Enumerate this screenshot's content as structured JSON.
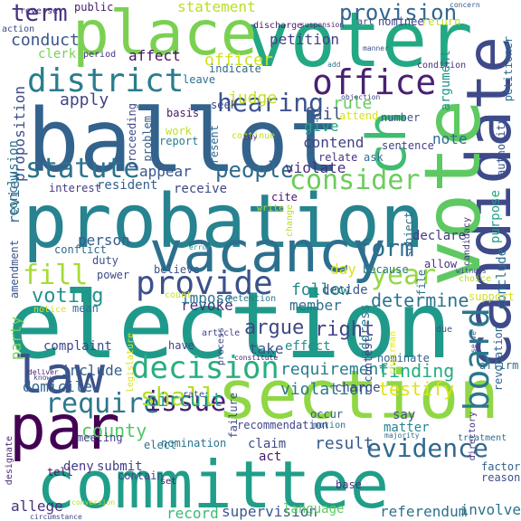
{
  "palette": {
    "dark_purple": "#45176a",
    "indigo": "#3e4a89",
    "blue": "#365c8d",
    "steel": "#2a768e",
    "teal": "#20918c",
    "green": "#35b779",
    "lime": "#86d549",
    "yellow_green": "#b5de2b"
  },
  "words": [
    {
      "text": "election",
      "color": "#1f9a8a"
    },
    {
      "text": "ballot",
      "color": "#33638d"
    },
    {
      "text": "probation",
      "color": "#26838f"
    },
    {
      "text": "committee",
      "color": "#1f9e89"
    },
    {
      "text": "section",
      "color": "#8fd744"
    },
    {
      "text": "voter",
      "color": "#23a884"
    },
    {
      "text": "candidate",
      "color": "#3e4a89"
    },
    {
      "text": "vote",
      "color": "#5ec962"
    },
    {
      "text": "place",
      "color": "#7ad151"
    },
    {
      "text": "vacancy",
      "color": "#2d708e"
    },
    {
      "text": "law",
      "color": "#3b528b"
    },
    {
      "text": "par",
      "color": "#440154"
    },
    {
      "text": "ch",
      "color": "#3fbc73"
    },
    {
      "text": "district",
      "color": "#287d8e"
    },
    {
      "text": "office",
      "color": "#482173"
    },
    {
      "text": "provide",
      "color": "#3b518b"
    },
    {
      "text": "decision",
      "color": "#28ae80"
    },
    {
      "text": "statute",
      "color": "#2c728e"
    },
    {
      "text": "require",
      "color": "#2a788e"
    },
    {
      "text": "issue",
      "color": "#481f70"
    },
    {
      "text": "consider",
      "color": "#6ccd5a"
    },
    {
      "text": "board",
      "color": "#2a778e"
    },
    {
      "text": "hearing",
      "color": "#3a548c"
    },
    {
      "text": "people",
      "color": "#2f6b8e"
    },
    {
      "text": "evidence",
      "color": "#31688e"
    },
    {
      "text": "shall",
      "color": "#b5de2b"
    },
    {
      "text": "fill",
      "color": "#a5db36"
    },
    {
      "text": "year",
      "color": "#95d840"
    },
    {
      "text": "term",
      "color": "#46337e"
    },
    {
      "text": "provision",
      "color": "#32658e"
    },
    {
      "text": "form",
      "color": "#2e6e8e"
    },
    {
      "text": "voting",
      "color": "#1f948c"
    },
    {
      "text": "argue",
      "color": "#3f4788"
    },
    {
      "text": "right",
      "color": "#404588"
    },
    {
      "text": "determine",
      "color": "#2c738e"
    },
    {
      "text": "circuit",
      "color": "#21a685"
    },
    {
      "text": "requirement",
      "color": "#277f8e"
    },
    {
      "text": "county",
      "color": "#52c569"
    },
    {
      "text": "finding",
      "color": "#25ac82"
    },
    {
      "text": "testify",
      "color": "#dde318"
    },
    {
      "text": "violation",
      "color": "#2a788e"
    },
    {
      "text": "result",
      "color": "#365d8d"
    },
    {
      "text": "supervision",
      "color": "#38598c"
    },
    {
      "text": "referendum",
      "color": "#2d708e"
    },
    {
      "text": "involve",
      "color": "#2c728e"
    },
    {
      "text": "record",
      "color": "#3aba76"
    },
    {
      "text": "language",
      "color": "#5ec962"
    },
    {
      "text": "allege",
      "color": "#46307e"
    },
    {
      "text": "follow",
      "color": "#228b8d"
    },
    {
      "text": "member",
      "color": "#2e6f8e"
    },
    {
      "text": "officer",
      "color": "#d2e21b"
    },
    {
      "text": "judge",
      "color": "#c8e020"
    },
    {
      "text": "apply",
      "color": "#414487"
    },
    {
      "text": "conduct",
      "color": "#39568c"
    },
    {
      "text": "petition",
      "color": "#433e85"
    },
    {
      "text": "affect",
      "color": "#471164"
    },
    {
      "text": "rule",
      "color": "#65cb5e"
    },
    {
      "text": "fail",
      "color": "#3b528b"
    },
    {
      "text": "give",
      "color": "#1fa287"
    },
    {
      "text": "contend",
      "color": "#424186"
    },
    {
      "text": "note",
      "color": "#2f6c8e"
    },
    {
      "text": "person",
      "color": "#34608d"
    },
    {
      "text": "party",
      "color": "#7ad151"
    },
    {
      "text": "revoke",
      "color": "#472f7d"
    },
    {
      "text": "impose",
      "color": "#2b758e"
    },
    {
      "text": "complaint",
      "color": "#3f4889"
    },
    {
      "text": "include",
      "color": "#355f8d"
    },
    {
      "text": "domicile",
      "color": "#32658e"
    },
    {
      "text": "deny",
      "color": "#443983"
    },
    {
      "text": "submit",
      "color": "#424086"
    },
    {
      "text": "violate",
      "color": "#46327e"
    },
    {
      "text": "day",
      "color": "#d8e219"
    },
    {
      "text": "take",
      "color": "#3a538b"
    },
    {
      "text": "effect",
      "color": "#20928c"
    },
    {
      "text": "address",
      "color": "#2a788e"
    },
    {
      "text": "review",
      "color": "#2f6b8e"
    },
    {
      "text": "proposition",
      "color": "#3d4d8a"
    },
    {
      "text": "statement",
      "color": "#b8de29"
    },
    {
      "text": "clerk",
      "color": "#77d153"
    },
    {
      "text": "appear",
      "color": "#39568c"
    },
    {
      "text": "receive",
      "color": "#3f4788"
    },
    {
      "text": "resident",
      "color": "#355e8d"
    },
    {
      "text": "interest",
      "color": "#443a83"
    },
    {
      "text": "conclusion",
      "color": "#2c738e"
    },
    {
      "text": "duty",
      "color": "#3b528b"
    },
    {
      "text": "mean",
      "color": "#2d718e"
    },
    {
      "text": "have",
      "color": "#414487"
    },
    {
      "text": "believe",
      "color": "#3a548c"
    },
    {
      "text": "power",
      "color": "#3e4c8a"
    },
    {
      "text": "conflict",
      "color": "#31688e"
    },
    {
      "text": "amendment",
      "color": "#3b528b"
    },
    {
      "text": "public",
      "color": "#481b6d"
    },
    {
      "text": "nominee",
      "color": "#424186"
    },
    {
      "text": "return",
      "color": "#bddf26"
    },
    {
      "text": "argument",
      "color": "#1f968b"
    },
    {
      "text": "petitioner",
      "color": "#2e6d8e"
    },
    {
      "text": "authority",
      "color": "#3a548c"
    },
    {
      "text": "purpose",
      "color": "#1fa188"
    },
    {
      "text": "conclude",
      "color": "#2d718e"
    },
    {
      "text": "support",
      "color": "#d0e11c"
    },
    {
      "text": "revocation",
      "color": "#32648e"
    },
    {
      "text": "factor",
      "color": "#355f8d"
    },
    {
      "text": "reason",
      "color": "#3c4f8a"
    },
    {
      "text": "base",
      "color": "#472c7a"
    },
    {
      "text": "contest",
      "color": "#404588"
    },
    {
      "text": "nominate",
      "color": "#34618d"
    },
    {
      "text": "say",
      "color": "#3b528b"
    },
    {
      "text": "matter",
      "color": "#25848e"
    },
    {
      "text": "charge",
      "color": "#3e4989"
    },
    {
      "text": "occur",
      "color": "#38588c"
    },
    {
      "text": "act",
      "color": "#48186a"
    },
    {
      "text": "claim",
      "color": "#3e4a89"
    },
    {
      "text": "nomination",
      "color": "#2b758e"
    },
    {
      "text": "elect",
      "color": "#2c728e"
    },
    {
      "text": "meeting",
      "color": "#433e85"
    },
    {
      "text": "recommendation",
      "color": "#3f4788"
    },
    {
      "text": "contain",
      "color": "#404688"
    },
    {
      "text": "tell",
      "color": "#481668"
    },
    {
      "text": "reverse",
      "color": "#482475"
    },
    {
      "text": "decide",
      "color": "#38598c"
    },
    {
      "text": "because",
      "color": "#2a788e"
    },
    {
      "text": "allow",
      "color": "#46327e"
    },
    {
      "text": "declare",
      "color": "#443983"
    },
    {
      "text": "subject",
      "color": "#2f6c8e"
    },
    {
      "text": "sentence",
      "color": "#423f85"
    },
    {
      "text": "ask",
      "color": "#2c718e"
    },
    {
      "text": "relate",
      "color": "#46337f"
    },
    {
      "text": "present",
      "color": "#2f6b8e"
    },
    {
      "text": "proceeding",
      "color": "#3e4a89"
    },
    {
      "text": "problem",
      "color": "#355f8d"
    },
    {
      "text": "work",
      "color": "#c2df23"
    },
    {
      "text": "report",
      "color": "#277e8e"
    },
    {
      "text": "basis",
      "color": "#48196b"
    },
    {
      "text": "seek",
      "color": "#3f4889"
    },
    {
      "text": "leave",
      "color": "#2c728e"
    },
    {
      "text": "indicate",
      "color": "#31688e"
    },
    {
      "text": "period",
      "color": "#463480"
    },
    {
      "text": "action",
      "color": "#3e4a89"
    },
    {
      "text": "discharge",
      "color": "#481c6e"
    },
    {
      "text": "suspension",
      "color": "#482677"
    },
    {
      "text": "art",
      "color": "#433e85"
    },
    {
      "text": "concern",
      "color": "#38598c"
    },
    {
      "text": "manner",
      "color": "#3b528b"
    },
    {
      "text": "condition",
      "color": "#46327e"
    },
    {
      "text": "objection",
      "color": "#414487"
    },
    {
      "text": "attend",
      "color": "#dde318"
    },
    {
      "text": "number",
      "color": "#3a548c"
    },
    {
      "text": "retention",
      "color": "#2a788e"
    },
    {
      "text": "continue",
      "color": "#bddf26"
    },
    {
      "text": "write",
      "color": "#b0dd2f"
    },
    {
      "text": "cite",
      "color": "#481467"
    },
    {
      "text": "change",
      "color": "#b8de29"
    },
    {
      "text": "candidacy",
      "color": "#453882"
    },
    {
      "text": "witness",
      "color": "#3f4788"
    },
    {
      "text": "choice",
      "color": "#b5de2b"
    },
    {
      "text": "article",
      "color": "#424086"
    },
    {
      "text": "count",
      "color": "#c8e020"
    },
    {
      "text": "error",
      "color": "#1fa287"
    },
    {
      "text": "process",
      "color": "#3e4c8a"
    },
    {
      "text": "chairman",
      "color": "#e5e419"
    },
    {
      "text": "legislature",
      "color": "#dae319"
    },
    {
      "text": "constitute",
      "color": "#482576"
    },
    {
      "text": "failure",
      "color": "#3c4f8a"
    },
    {
      "text": "deliver",
      "color": "#481a6c"
    },
    {
      "text": "rate",
      "color": "#3d4e8a"
    },
    {
      "text": "affirm",
      "color": "#2e6e8e"
    },
    {
      "text": "motion",
      "color": "#2c728e"
    },
    {
      "text": "circumstance",
      "color": "#414487"
    },
    {
      "text": "treatment",
      "color": "#2e6f8e"
    },
    {
      "text": "directory",
      "color": "#46327e"
    },
    {
      "text": "majority",
      "color": "#2d708e"
    },
    {
      "text": "designate",
      "color": "#482979"
    },
    {
      "text": "conversion",
      "color": "#b0dd2f"
    },
    {
      "text": "serve",
      "color": "#3a538b"
    },
    {
      "text": "set",
      "color": "#481769"
    },
    {
      "text": "notice",
      "color": "#d5e21a"
    },
    {
      "text": "add",
      "color": "#2c728e"
    },
    {
      "text": "know",
      "color": "#3e4989"
    },
    {
      "text": "may",
      "color": "#463480"
    },
    {
      "text": "file",
      "color": "#2e6e8e"
    },
    {
      "text": "due",
      "color": "#3b528b"
    }
  ]
}
